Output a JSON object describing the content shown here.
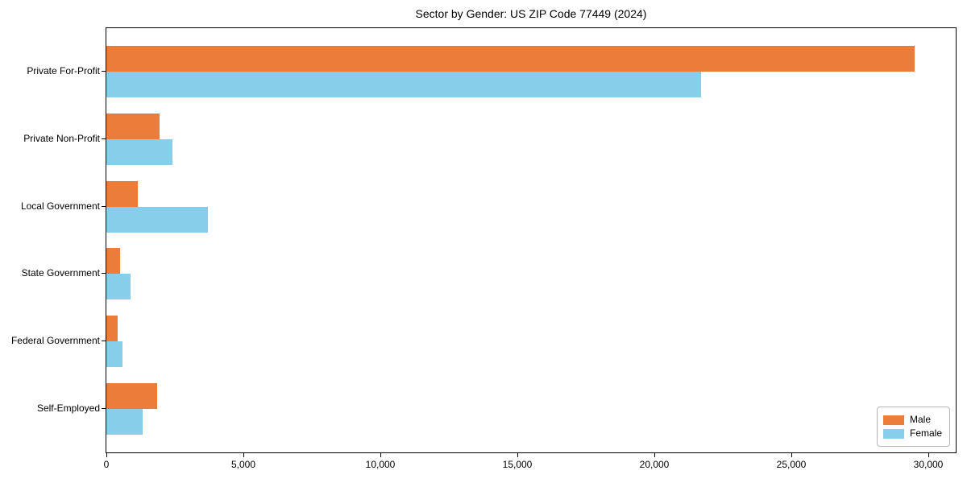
{
  "chart_data": {
    "type": "bar",
    "orientation": "horizontal",
    "title": "Sector by Gender: US ZIP Code 77449 (2024)",
    "xlabel": "",
    "ylabel": "",
    "categories": [
      "Private For-Profit",
      "Private Non-Profit",
      "Local Government",
      "State Government",
      "Federal Government",
      "Self-Employed"
    ],
    "series": [
      {
        "name": "Male",
        "color": "#EC7C3A",
        "values": [
          29500,
          1950,
          1150,
          500,
          410,
          1850
        ]
      },
      {
        "name": "Female",
        "color": "#87CEEB",
        "values": [
          21700,
          2400,
          3700,
          880,
          580,
          1320
        ]
      }
    ],
    "xlim": [
      0,
      31000
    ],
    "xticks": [
      0,
      5000,
      10000,
      15000,
      20000,
      25000,
      30000
    ],
    "xtick_labels": [
      "0",
      "5,000",
      "10,000",
      "15,000",
      "20,000",
      "25,000",
      "30,000"
    ],
    "legend_position": "lower right",
    "grid": false,
    "background": "#ffffff",
    "spine_color": "#000000"
  }
}
